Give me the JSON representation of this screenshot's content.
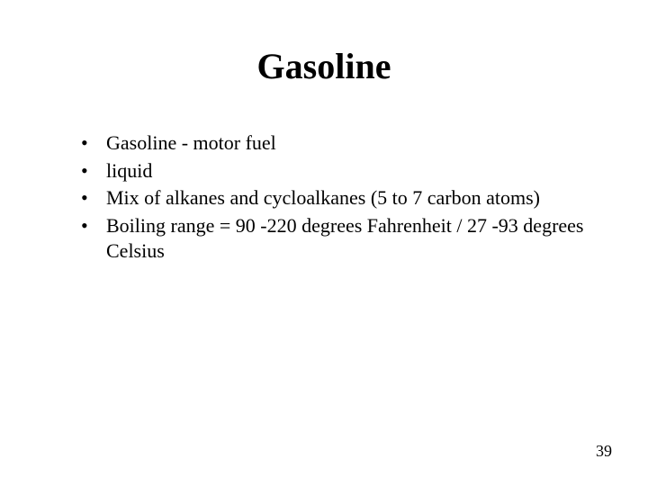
{
  "slide": {
    "title": "Gasoline",
    "bullets": [
      "Gasoline - motor fuel",
      "liquid",
      "Mix of alkanes and cycloalkanes (5 to 7 carbon atoms)",
      "Boiling range = 90 -220 degrees Fahrenheit / 27 -93 degrees Celsius"
    ],
    "page_number": "39"
  },
  "style": {
    "background_color": "#ffffff",
    "text_color": "#000000",
    "title_fontsize": 40,
    "body_fontsize": 22,
    "pagenum_fontsize": 18,
    "font_family": "Times New Roman"
  }
}
